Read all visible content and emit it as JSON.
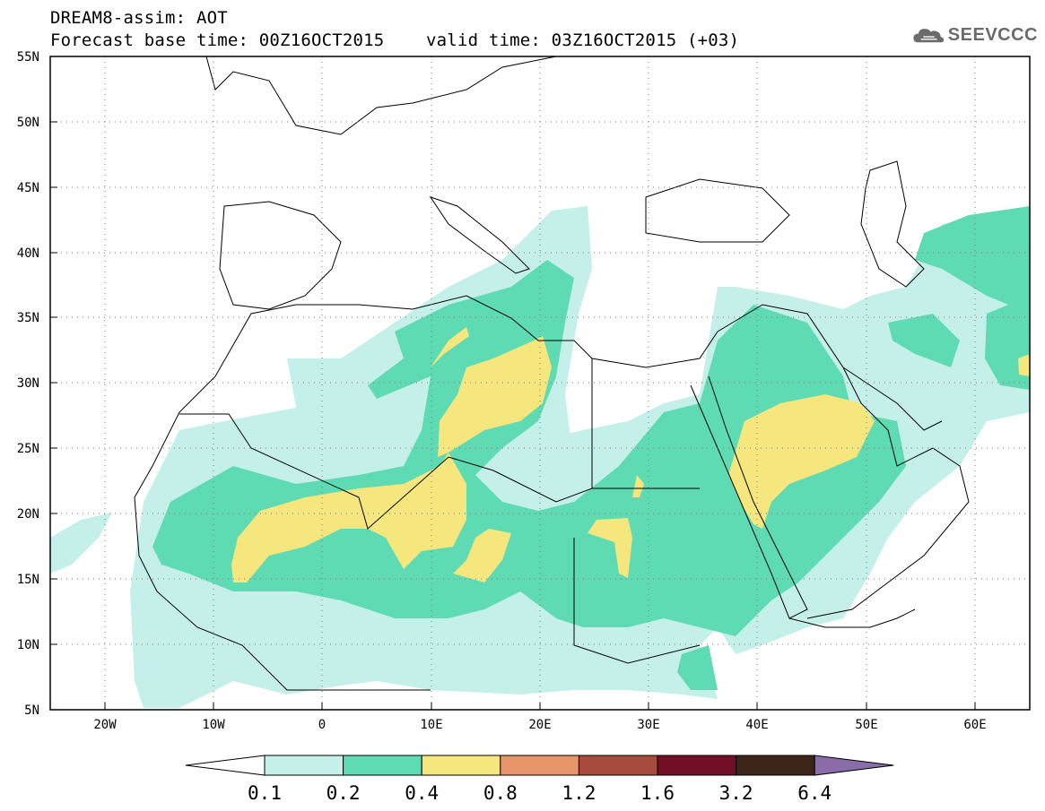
{
  "header": {
    "title_line1": "DREAM8-assim: AOT",
    "base_time_text": "Forecast base time: 00Z16OCT2015",
    "valid_time_text": "valid time: 03Z16OCT2015 (+03)"
  },
  "logo": {
    "text": "SEEVCCC",
    "icon": "cloud-icon"
  },
  "map": {
    "projection": "lat-lon",
    "lon_range": [
      -25,
      65
    ],
    "lat_range": [
      5,
      55
    ],
    "lat_tick_labels": [
      "55N",
      "50N",
      "45N",
      "40N",
      "35N",
      "30N",
      "25N",
      "20N",
      "15N",
      "10N",
      "5N"
    ],
    "lon_tick_labels": [
      "20W",
      "10W",
      "0",
      "10E",
      "20E",
      "30E",
      "40E",
      "50E",
      "60E"
    ],
    "gridlines": "dotted",
    "variable": "Aerosol Optical Thickness"
  },
  "colorbar": {
    "levels": [
      "0.1",
      "0.2",
      "0.4",
      "0.8",
      "1.2",
      "1.6",
      "3.2",
      "6.4"
    ],
    "colors": [
      "#ffffff",
      "#c5f0e9",
      "#5fdbb4",
      "#f5e67d",
      "#e8956b",
      "#a64b3d",
      "#720f26",
      "#3d2418",
      "#8a6ca8"
    ]
  }
}
